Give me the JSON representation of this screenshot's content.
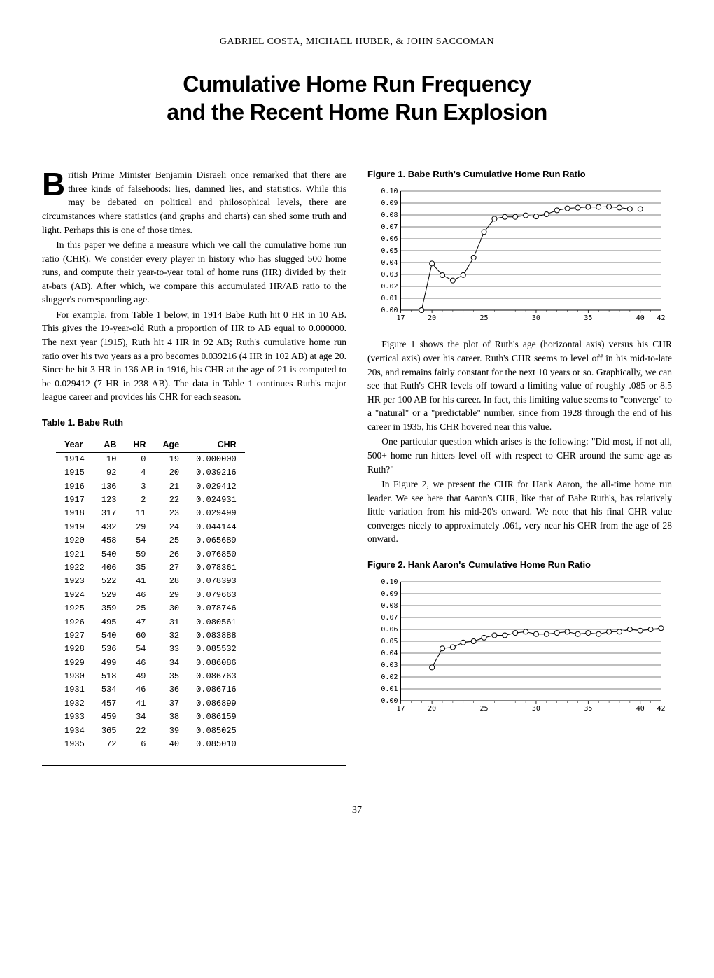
{
  "authors": "GABRIEL COSTA, MICHAEL HUBER, & JOHN SACCOMAN",
  "title_line1": "Cumulative Home Run Frequency",
  "title_line2": "and the Recent Home Run Explosion",
  "dropcap": "B",
  "p1": "ritish Prime Minister Benjamin Disraeli once remarked that there are three kinds of falsehoods: lies, damned lies, and statistics. While this may be debated on political and philosophical levels, there are circumstances where statistics (and graphs and charts) can shed some truth and light. Perhaps this is one of those times.",
  "p2": "In this paper we define a measure which we call the cumulative home run ratio (CHR). We consider every player in history who has slugged 500 home runs, and compute their year-to-year total of home runs (HR) divided by their at-bats (AB). After which, we compare this accumulated HR/AB ratio to the slugger's corresponding age.",
  "p3": "For example, from Table 1 below, in 1914 Babe Ruth hit 0 HR in 10 AB. This gives the 19-year-old Ruth a proportion of HR to AB equal to 0.000000. The next year (1915), Ruth hit 4 HR in 92 AB; Ruth's cumulative home run ratio over his two years as a pro becomes 0.039216 (4 HR in 102 AB) at age 20. Since he hit 3 HR in 136 AB in 1916, his CHR at the age of 21 is computed to be 0.029412 (7 HR in 238 AB). The data in Table 1 continues Ruth's major league career and provides his CHR for each season.",
  "table1_title": "Table 1. Babe Ruth",
  "table1": {
    "columns": [
      "Year",
      "AB",
      "HR",
      "Age",
      "CHR"
    ],
    "rows": [
      [
        "1914",
        "10",
        "0",
        "19",
        "0.000000"
      ],
      [
        "1915",
        "92",
        "4",
        "20",
        "0.039216"
      ],
      [
        "1916",
        "136",
        "3",
        "21",
        "0.029412"
      ],
      [
        "1917",
        "123",
        "2",
        "22",
        "0.024931"
      ],
      [
        "1918",
        "317",
        "11",
        "23",
        "0.029499"
      ],
      [
        "1919",
        "432",
        "29",
        "24",
        "0.044144"
      ],
      [
        "1920",
        "458",
        "54",
        "25",
        "0.065689"
      ],
      [
        "1921",
        "540",
        "59",
        "26",
        "0.076850"
      ],
      [
        "1922",
        "406",
        "35",
        "27",
        "0.078361"
      ],
      [
        "1923",
        "522",
        "41",
        "28",
        "0.078393"
      ],
      [
        "1924",
        "529",
        "46",
        "29",
        "0.079663"
      ],
      [
        "1925",
        "359",
        "25",
        "30",
        "0.078746"
      ],
      [
        "1926",
        "495",
        "47",
        "31",
        "0.080561"
      ],
      [
        "1927",
        "540",
        "60",
        "32",
        "0.083888"
      ],
      [
        "1928",
        "536",
        "54",
        "33",
        "0.085532"
      ],
      [
        "1929",
        "499",
        "46",
        "34",
        "0.086086"
      ],
      [
        "1930",
        "518",
        "49",
        "35",
        "0.086763"
      ],
      [
        "1931",
        "534",
        "46",
        "36",
        "0.086716"
      ],
      [
        "1932",
        "457",
        "41",
        "37",
        "0.086899"
      ],
      [
        "1933",
        "459",
        "34",
        "38",
        "0.086159"
      ],
      [
        "1934",
        "365",
        "22",
        "39",
        "0.085025"
      ],
      [
        "1935",
        "72",
        "6",
        "40",
        "0.085010"
      ]
    ]
  },
  "fig1_title": "Figure 1. Babe Ruth's Cumulative Home Run Ratio",
  "fig1": {
    "type": "line",
    "xlim": [
      17,
      42
    ],
    "xticks": [
      17,
      20,
      25,
      30,
      35,
      40,
      42
    ],
    "ylim": [
      0,
      0.1
    ],
    "ytick_step": 0.01,
    "ytick_labels": [
      "0.00",
      "0.01",
      "0.02",
      "0.03",
      "0.04",
      "0.05",
      "0.06",
      "0.07",
      "0.08",
      "0.09",
      "0.10"
    ],
    "marker": "circle",
    "marker_size": 3.5,
    "line_color": "#000000",
    "line_width": 1,
    "grid_color": "#000000",
    "background_color": "#ffffff",
    "font_family": "monospace",
    "label_fontsize": 10,
    "points": [
      [
        19,
        0.0
      ],
      [
        20,
        0.039216
      ],
      [
        21,
        0.029412
      ],
      [
        22,
        0.024931
      ],
      [
        23,
        0.029499
      ],
      [
        24,
        0.044144
      ],
      [
        25,
        0.065689
      ],
      [
        26,
        0.07685
      ],
      [
        27,
        0.078361
      ],
      [
        28,
        0.078393
      ],
      [
        29,
        0.079663
      ],
      [
        30,
        0.078746
      ],
      [
        31,
        0.080561
      ],
      [
        32,
        0.083888
      ],
      [
        33,
        0.085532
      ],
      [
        34,
        0.086086
      ],
      [
        35,
        0.086763
      ],
      [
        36,
        0.086716
      ],
      [
        37,
        0.086899
      ],
      [
        38,
        0.086159
      ],
      [
        39,
        0.085025
      ],
      [
        40,
        0.08501
      ]
    ]
  },
  "p4": "Figure 1 shows the plot of Ruth's age (horizontal axis) versus his CHR (vertical axis) over his career. Ruth's CHR seems to level off in his mid-to-late 20s, and remains fairly constant for the next 10 years or so. Graphically, we can see that Ruth's CHR levels off toward a limiting value of roughly .085 or 8.5 HR per 100 AB for his career. In fact, this limiting value seems to \"converge\" to a \"natural\" or a \"predictable\" number, since from 1928 through the end of his career in 1935, his CHR hovered near this value.",
  "p5": "One particular question which arises is the following: \"Did most, if not all, 500+ home run hitters level off with respect to CHR around the same age as Ruth?\"",
  "p6": "In Figure 2, we present the CHR for Hank Aaron, the all-time home run leader. We see here that Aaron's CHR, like that of Babe Ruth's, has relatively little variation from his mid-20's onward. We note that his final CHR value converges nicely to approximately .061, very near his CHR from the age of 28 onward.",
  "fig2_title": "Figure 2. Hank Aaron's Cumulative Home Run Ratio",
  "fig2": {
    "type": "line",
    "xlim": [
      17,
      42
    ],
    "xticks": [
      17,
      20,
      25,
      30,
      35,
      40,
      42
    ],
    "ylim": [
      0,
      0.1
    ],
    "ytick_step": 0.01,
    "ytick_labels": [
      "0.00",
      "0.01",
      "0.02",
      "0.03",
      "0.04",
      "0.05",
      "0.06",
      "0.07",
      "0.08",
      "0.09",
      "0.10"
    ],
    "marker": "circle",
    "marker_size": 3.5,
    "line_color": "#000000",
    "line_width": 1,
    "grid_color": "#000000",
    "background_color": "#ffffff",
    "font_family": "monospace",
    "label_fontsize": 10,
    "points": [
      [
        20,
        0.028
      ],
      [
        21,
        0.044
      ],
      [
        22,
        0.045
      ],
      [
        23,
        0.049
      ],
      [
        24,
        0.05
      ],
      [
        25,
        0.053
      ],
      [
        26,
        0.055
      ],
      [
        27,
        0.055
      ],
      [
        28,
        0.057
      ],
      [
        29,
        0.058
      ],
      [
        30,
        0.056
      ],
      [
        31,
        0.056
      ],
      [
        32,
        0.057
      ],
      [
        33,
        0.058
      ],
      [
        34,
        0.056
      ],
      [
        35,
        0.057
      ],
      [
        36,
        0.056
      ],
      [
        37,
        0.058
      ],
      [
        38,
        0.058
      ],
      [
        39,
        0.06
      ],
      [
        40,
        0.059
      ],
      [
        41,
        0.06
      ],
      [
        42,
        0.061
      ]
    ]
  },
  "page_number": "37"
}
